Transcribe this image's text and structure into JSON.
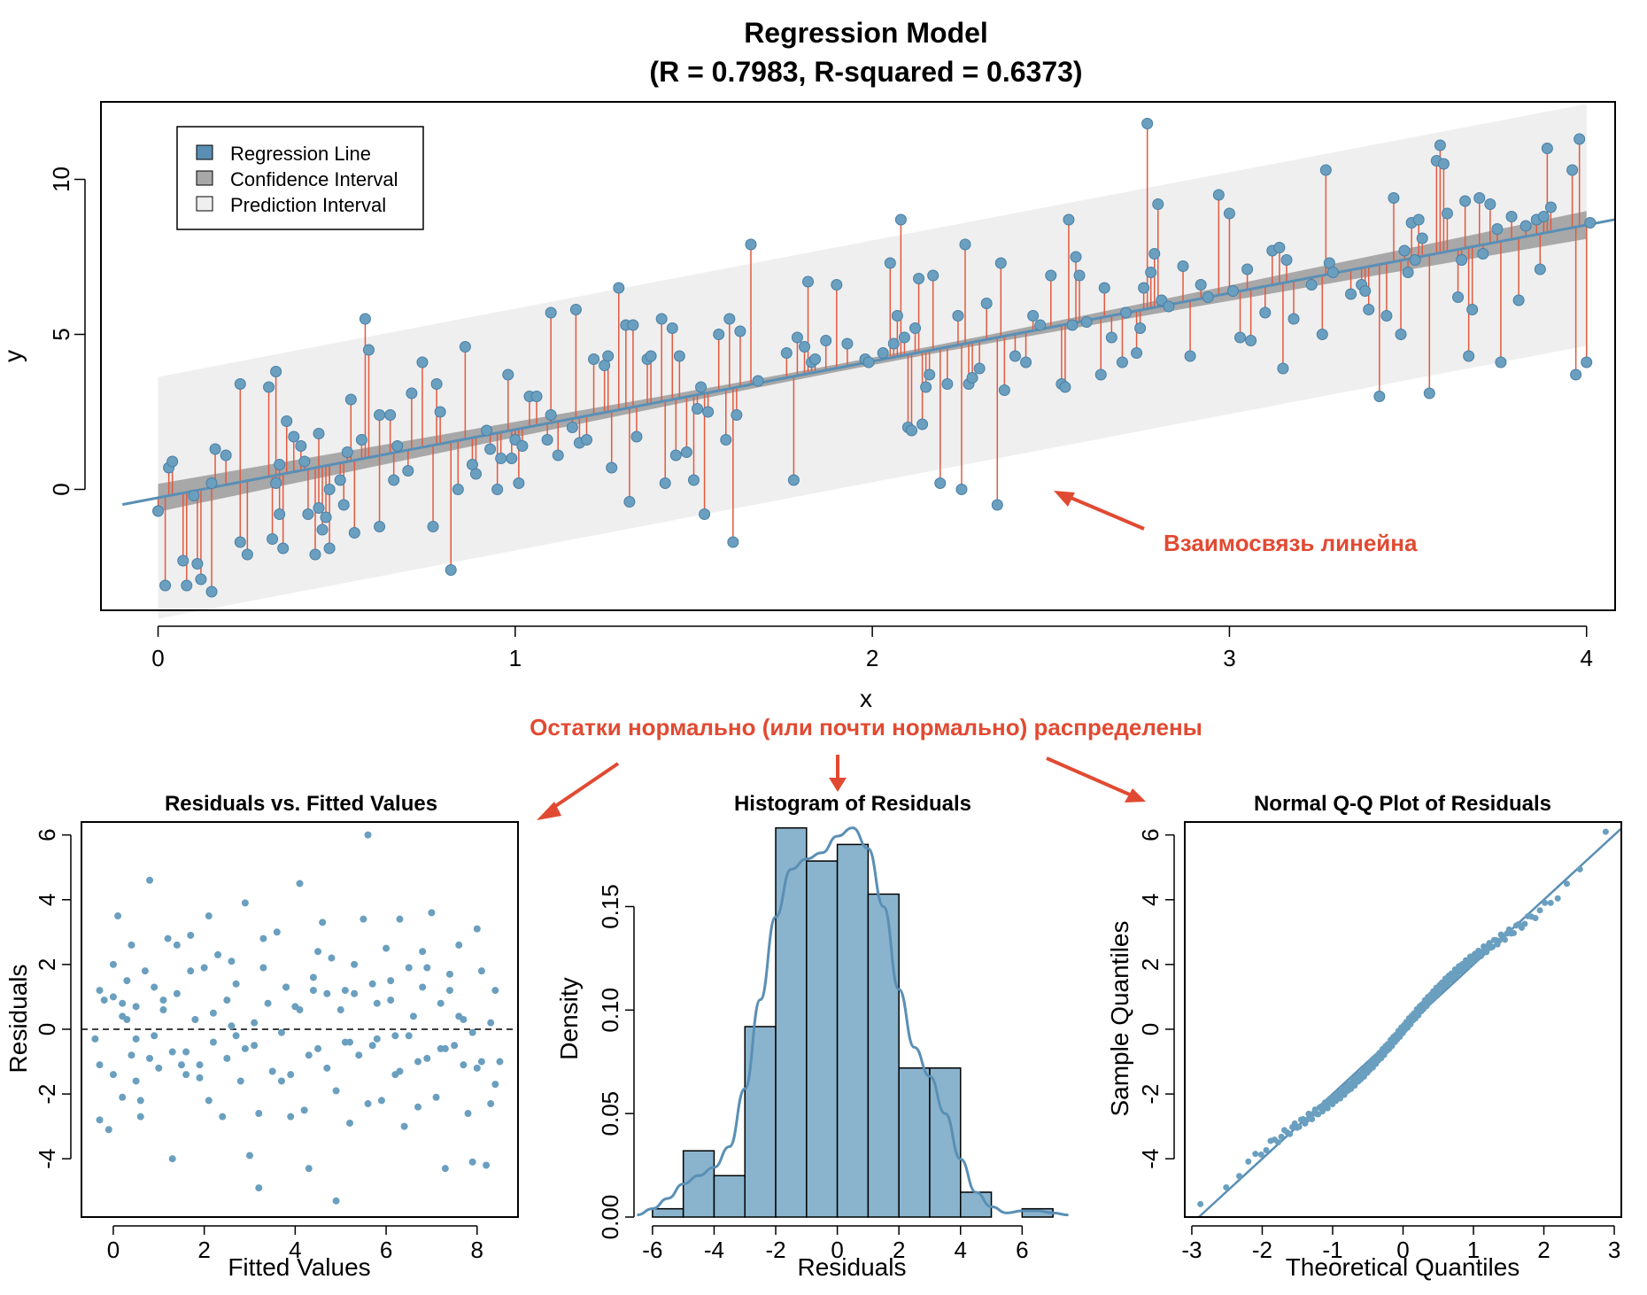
{
  "colors": {
    "point": "#6a9fbf",
    "line": "#5a8fb5",
    "residual_segment": "#e25a3f",
    "confidence_band": "#a8a8a8",
    "prediction_band": "#efefef",
    "annotation": "#e14a32",
    "hist_bar": "#8ab4cd"
  },
  "chart_data": [
    {
      "type": "scatter",
      "title": "Regression Model",
      "subtitle": "(R = 0.7983, R-squared = 0.6373)",
      "xlabel": "x",
      "ylabel": "y",
      "xlim": [
        -0.16,
        4.08
      ],
      "ylim": [
        -3.9,
        12.5
      ],
      "xticks": [
        0,
        1,
        2,
        3,
        4
      ],
      "yticks": [
        0,
        5,
        10
      ],
      "regression_line": {
        "intercept": -0.27,
        "slope": 2.2
      },
      "confidence_half_width": {
        "at_ends": 0.45,
        "at_center": 0.12
      },
      "prediction_half_width": 3.9,
      "legend": {
        "position": "top-left",
        "entries": [
          {
            "label": "Regression Line",
            "color": "#5a8fb5"
          },
          {
            "label": "Confidence Interval",
            "color": "#a8a8a8"
          },
          {
            "label": "Prediction Interval",
            "color": "#efefef"
          }
        ]
      },
      "points_x": [
        0,
        0.02,
        0.03,
        0.04,
        0.07,
        0.08,
        0.1,
        0.11,
        0.12,
        0.15,
        0.15,
        0.16,
        0.19,
        0.23,
        0.23,
        0.25,
        0.31,
        0.32,
        0.33,
        0.33,
        0.34,
        0.34,
        0.35,
        0.36,
        0.38,
        0.4,
        0.41,
        0.42,
        0.44,
        0.45,
        0.45,
        0.46,
        0.47,
        0.48,
        0.48,
        0.51,
        0.52,
        0.53,
        0.54,
        0.55,
        0.57,
        0.58,
        0.59,
        0.62,
        0.62,
        0.65,
        0.66,
        0.67,
        0.7,
        0.71,
        0.74,
        0.77,
        0.78,
        0.79,
        0.82,
        0.84,
        0.86,
        0.88,
        0.89,
        0.92,
        0.93,
        0.95,
        0.96,
        0.98,
        0.99,
        1,
        1.01,
        1.02,
        1.04,
        1.06,
        1.09,
        1.1,
        1.1,
        1.12,
        1.16,
        1.17,
        1.18,
        1.2,
        1.22,
        1.25,
        1.26,
        1.27,
        1.29,
        1.31,
        1.32,
        1.33,
        1.34,
        1.37,
        1.38,
        1.41,
        1.42,
        1.44,
        1.45,
        1.46,
        1.48,
        1.5,
        1.51,
        1.52,
        1.53,
        1.54,
        1.57,
        1.59,
        1.6,
        1.61,
        1.62,
        1.63,
        1.66,
        1.68,
        1.76,
        1.78,
        1.79,
        1.81,
        1.82,
        1.83,
        1.84,
        1.87,
        1.9,
        1.93,
        1.98,
        1.99,
        2.03,
        2.05,
        2.06,
        2.07,
        2.08,
        2.09,
        2.1,
        2.11,
        2.12,
        2.13,
        2.14,
        2.15,
        2.16,
        2.17,
        2.19,
        2.21,
        2.24,
        2.25,
        2.26,
        2.27,
        2.28,
        2.3,
        2.32,
        2.35,
        2.36,
        2.37,
        2.4,
        2.43,
        2.45,
        2.47,
        2.5,
        2.53,
        2.54,
        2.55,
        2.56,
        2.57,
        2.58,
        2.6,
        2.64,
        2.65,
        2.67,
        2.7,
        2.71,
        2.74,
        2.75,
        2.76,
        2.77,
        2.78,
        2.79,
        2.8,
        2.81,
        2.83,
        2.87,
        2.89,
        2.92,
        2.94,
        2.97,
        3,
        3.01,
        3.03,
        3.05,
        3.06,
        3.1,
        3.12,
        3.14,
        3.15,
        3.16,
        3.18,
        3.23,
        3.26,
        3.27,
        3.28,
        3.29,
        3.34,
        3.37,
        3.38,
        3.39,
        3.42,
        3.44,
        3.46,
        3.48,
        3.49,
        3.5,
        3.51,
        3.52,
        3.53,
        3.54,
        3.56,
        3.58,
        3.59,
        3.6,
        3.61,
        3.64,
        3.65,
        3.66,
        3.67,
        3.68,
        3.7,
        3.71,
        3.73,
        3.75,
        3.76,
        3.79,
        3.81,
        3.83,
        3.86,
        3.87,
        3.88,
        3.89,
        3.9,
        3.96,
        3.97,
        3.98,
        4,
        4.01
      ],
      "points_y": [
        -0.7,
        -3.1,
        0.7,
        0.9,
        -2.3,
        -3.1,
        -0.2,
        -2.4,
        -2.9,
        0.2,
        -3.3,
        1.3,
        1.1,
        -1.7,
        3.4,
        -2.1,
        3.3,
        -1.6,
        0.2,
        3.8,
        -0.8,
        0.8,
        -1.9,
        2.2,
        1.7,
        1.4,
        0.9,
        -0.8,
        -2.1,
        -0.6,
        1.8,
        -1.3,
        -0.9,
        0,
        -1.9,
        0.3,
        -0.5,
        1.2,
        2.9,
        -1.4,
        1.6,
        5.5,
        4.5,
        2.4,
        -1.2,
        2.4,
        0.3,
        1.4,
        0.6,
        3.1,
        4.1,
        -1.2,
        3.4,
        2.5,
        -2.6,
        0,
        4.6,
        0.8,
        0.5,
        1.9,
        1.3,
        0,
        1,
        3.7,
        1,
        1.6,
        0.2,
        1.4,
        3,
        3,
        1.6,
        2.4,
        5.7,
        1.1,
        2,
        5.8,
        1.5,
        1.6,
        4.2,
        4,
        4.3,
        0.7,
        6.5,
        5.3,
        -0.4,
        5.3,
        1.7,
        4.2,
        4.3,
        5.5,
        0.2,
        5.2,
        1.1,
        4.3,
        1.2,
        0.3,
        2.6,
        3.3,
        -0.8,
        2.5,
        5,
        1.6,
        5.5,
        -1.7,
        2.4,
        5.1,
        7.9,
        3.5,
        4.4,
        0.3,
        4.9,
        4.6,
        6.7,
        4.1,
        4.2,
        4.8,
        6.6,
        4.7,
        4.2,
        4.1,
        4.4,
        7.3,
        4.7,
        5.6,
        8.7,
        4.9,
        2,
        1.9,
        5.2,
        6.8,
        2.1,
        3.3,
        3.7,
        6.9,
        0.2,
        3.4,
        5.6,
        0,
        7.9,
        3.4,
        3.6,
        3.9,
        6,
        -0.5,
        7.3,
        3.2,
        4.3,
        4.1,
        5.6,
        5.3,
        6.9,
        3.4,
        3.3,
        8.7,
        5.3,
        7.5,
        6.9,
        5.4,
        3.7,
        6.5,
        4.9,
        4.1,
        5.7,
        4.4,
        5.2,
        6.5,
        11.8,
        7,
        7.6,
        9.2,
        6.1,
        5.9,
        7.2,
        4.3,
        6.6,
        6.2,
        9.5,
        8.9,
        6.4,
        4.9,
        7.1,
        4.8,
        5.7,
        7.7,
        7.8,
        3.9,
        7.4,
        5.5,
        6.6,
        5,
        10.3,
        7.3,
        7,
        6.3,
        6.6,
        6.4,
        5.8,
        3,
        5.6,
        9.4,
        5,
        7.7,
        7,
        8.6,
        7.4,
        8.7,
        8.1,
        3.1,
        10.6,
        11.1,
        10.5,
        8.9,
        6.2,
        7.4,
        9.3,
        4.3,
        5.8,
        9.4,
        7.6,
        9.2,
        8.4,
        4.1,
        8.8,
        6.1,
        8.5,
        8.7,
        7.1,
        8.8,
        11,
        9.1,
        10.3,
        3.7,
        11.3,
        4.1,
        8.6,
        8.1,
        8.6,
        6.7,
        7.5,
        6.9,
        7.2
      ]
    },
    {
      "type": "scatter",
      "title": "Residuals vs. Fitted Values",
      "xlabel": "Fitted Values",
      "ylabel": "Residuals",
      "xlim": [
        -0.7,
        8.9
      ],
      "ylim": [
        -5.8,
        6.4
      ],
      "xticks": [
        0,
        2,
        4,
        6,
        8
      ],
      "yticks": [
        -4,
        -2,
        0,
        2,
        4,
        6
      ],
      "reference_line": 0,
      "points_x": [
        -0.4,
        -0.3,
        -0.3,
        -0.2,
        -0.1,
        0,
        0,
        0.1,
        0.2,
        0.2,
        0.3,
        0.4,
        0.4,
        0.5,
        0.5,
        0.6,
        0.7,
        0.8,
        0.9,
        1,
        1.1,
        1.2,
        1.3,
        1.4,
        1.5,
        1.6,
        1.7,
        1.8,
        1.9,
        2,
        2.1,
        2.2,
        2.3,
        2.4,
        2.5,
        2.6,
        2.7,
        2.8,
        2.9,
        3,
        3.1,
        3.2,
        3.3,
        3.4,
        3.5,
        3.6,
        3.7,
        3.8,
        3.9,
        4,
        4.1,
        4.2,
        4.3,
        4.4,
        4.5,
        4.6,
        4.7,
        4.8,
        4.9,
        5,
        5.1,
        5.2,
        5.3,
        5.4,
        5.5,
        5.6,
        5.7,
        5.8,
        5.9,
        6,
        6.1,
        6.2,
        6.3,
        6.4,
        6.5,
        6.6,
        6.7,
        6.8,
        6.9,
        7,
        7.1,
        7.2,
        7.3,
        7.4,
        7.5,
        7.6,
        7.7,
        7.8,
        7.9,
        8,
        8.1,
        8.2,
        8.3,
        8.4,
        8.5,
        -0.3,
        0.2,
        0.6,
        0.9,
        1.3,
        1.7,
        2.1,
        2.5,
        2.9,
        3.3,
        3.7,
        4.1,
        4.5,
        4.9,
        5.3,
        5.7,
        6.1,
        6.5,
        6.9,
        7.3,
        7.7,
        8.1,
        8.4,
        0.3,
        0.8,
        1.4,
        1.9,
        2.6,
        3.1,
        3.8,
        4.3,
        4.7,
        5.2,
        5.8,
        6.3,
        6.8,
        7.2,
        7.6,
        8.0,
        0,
        0.5,
        1.1,
        1.6,
        2.2,
        2.7,
        3.2,
        3.9,
        4.4,
        5.1,
        5.6,
        6.2,
        6.7,
        7.4,
        7.9,
        8.3
      ],
      "points_y": [
        -0.3,
        1.2,
        -2.8,
        0.9,
        -3.1,
        2.0,
        -1.4,
        3.5,
        -2.1,
        0.4,
        1.5,
        -0.8,
        2.6,
        -1.6,
        0.7,
        -2.7,
        1.8,
        4.6,
        -0.2,
        -1.2,
        0.6,
        2.8,
        -4.0,
        1.1,
        -1.1,
        -0.7,
        2.9,
        0.3,
        -1.5,
        1.9,
        3.5,
        -0.4,
        2.3,
        -2.7,
        -0.9,
        2.1,
        1.4,
        -1.6,
        3.9,
        -3.9,
        0.2,
        -4.9,
        2.8,
        0.8,
        -1.3,
        3.0,
        -0.1,
        1.3,
        -2.7,
        0.7,
        4.5,
        -2.5,
        -4.3,
        1.6,
        -0.6,
        3.3,
        -1.2,
        2.2,
        -5.3,
        0.6,
        1.2,
        -2.9,
        2.0,
        -0.8,
        3.4,
        6.0,
        1.4,
        -0.3,
        -2.2,
        2.5,
        0.9,
        -1.4,
        3.4,
        -3.0,
        1.9,
        0.4,
        -2.4,
        1.3,
        -0.9,
        3.6,
        -2.1,
        0.8,
        -4.3,
        1.7,
        -0.5,
        2.6,
        -1.1,
        -2.6,
        -4.1,
        3.1,
        1.8,
        -4.2,
        0.2,
        -1.7,
        -1.0,
        -1.1,
        0.8,
        -2.2,
        1.3,
        -0.7,
        1.8,
        -2.2,
        0.9,
        -0.6,
        1.9,
        -1.6,
        0.6,
        2.4,
        -1.9,
        1.1,
        -0.5,
        1.5,
        -0.2,
        1.9,
        -0.6,
        0.3,
        -1.0,
        1.2,
        0.3,
        -0.9,
        2.6,
        -1.1,
        0.1,
        -0.5,
        1.3,
        -0.8,
        1.1,
        -0.4,
        0.8,
        -1.3,
        2.4,
        -0.6,
        0.4,
        -1.2,
        1.0,
        -0.3,
        0.9,
        -1.4,
        0.5,
        -0.2,
        -2.6,
        -1.4,
        1.2,
        -0.4,
        -2.3,
        -0.2,
        -1.0,
        1.2,
        -0.1,
        -2.3,
        -1.7,
        0.6,
        -0.6,
        -1.5,
        0.9,
        -2.0,
        3.0
      ]
    },
    {
      "type": "bar",
      "title": "Histogram of Residuals",
      "xlabel": "Residuals",
      "ylabel": "Density",
      "xlim": [
        -6.6,
        7.6
      ],
      "ylim": [
        0,
        0.19
      ],
      "xticks": [
        -6,
        -4,
        -2,
        0,
        2,
        4,
        6
      ],
      "yticks": [
        0.0,
        0.05,
        0.1,
        0.15
      ],
      "bin_edges": [
        -6,
        -5,
        -4,
        -3,
        -2,
        -1,
        0,
        1,
        2,
        3,
        4,
        5,
        6,
        7
      ],
      "densities": [
        0.004,
        0.032,
        0.02,
        0.092,
        0.188,
        0.172,
        0.18,
        0.156,
        0.072,
        0.072,
        0.012,
        0,
        0.004
      ],
      "density_curve": {
        "x": [
          -6.5,
          -6,
          -5.5,
          -5,
          -4.5,
          -4,
          -3.5,
          -3,
          -2.5,
          -2,
          -1.5,
          -1,
          -0.5,
          0,
          0.5,
          1,
          1.5,
          2,
          2.5,
          3,
          3.5,
          4,
          4.5,
          5,
          5.5,
          6,
          6.5,
          7,
          7.5
        ],
        "y": [
          0.001,
          0.004,
          0.009,
          0.016,
          0.02,
          0.024,
          0.034,
          0.062,
          0.105,
          0.145,
          0.168,
          0.173,
          0.176,
          0.184,
          0.188,
          0.178,
          0.15,
          0.11,
          0.082,
          0.068,
          0.05,
          0.028,
          0.012,
          0.005,
          0.002,
          0.003,
          0.003,
          0.002,
          0.001
        ]
      }
    },
    {
      "type": "scatter",
      "title": "Normal Q-Q Plot of Residuals",
      "xlabel": "Theoretical Quantiles",
      "ylabel": "Sample Quantiles",
      "xlim": [
        -3.1,
        3.1
      ],
      "ylim": [
        -5.8,
        6.4
      ],
      "xticks": [
        -3,
        -2,
        -1,
        0,
        1,
        2,
        3
      ],
      "yticks": [
        -4,
        -2,
        0,
        2,
        4,
        6
      ],
      "reference_line": {
        "intercept": 0,
        "slope": 2.0
      },
      "n_points": 250,
      "min_sample": -5.4,
      "max_sample": 6.1
    }
  ],
  "annotations": {
    "linear": "Взаимосвязь линейна",
    "normal": "Остатки нормально (или почти нормально) распределены"
  }
}
